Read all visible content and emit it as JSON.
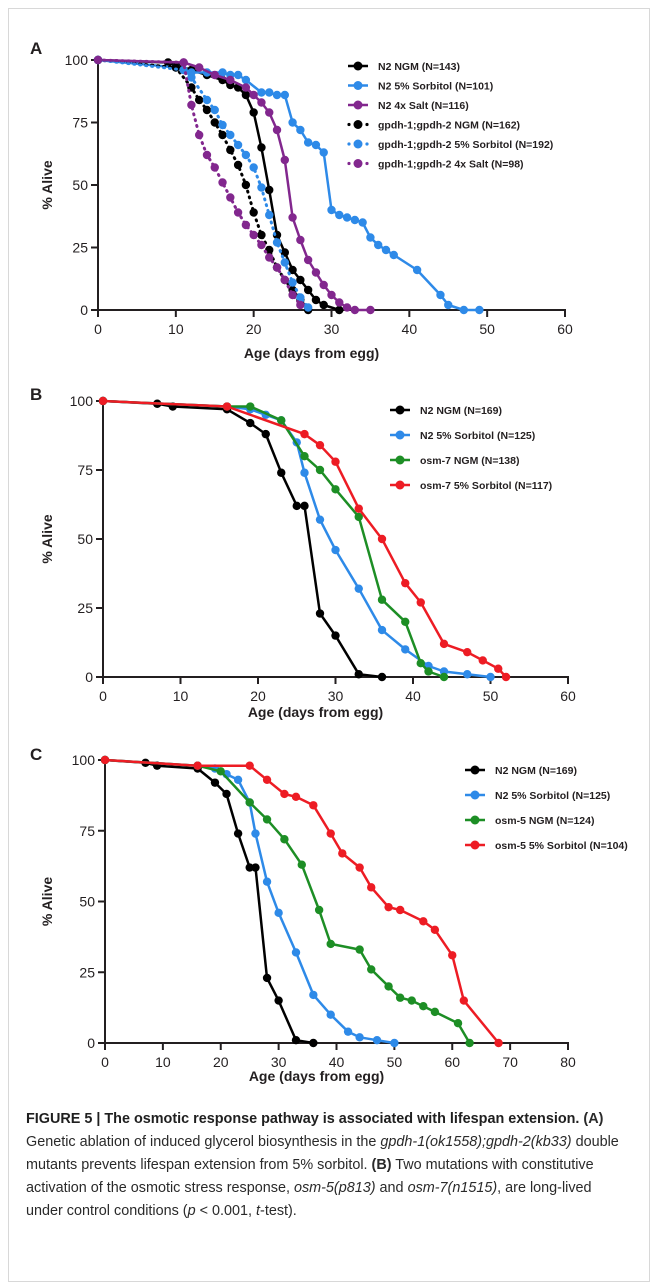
{
  "panels": [
    {
      "letter": "A",
      "chart_data": {
        "type": "line",
        "xlabel": "Age (days from egg)",
        "ylabel": "% Alive",
        "xlim": [
          0,
          60
        ],
        "ylim": [
          0,
          100
        ],
        "xticks": [
          0,
          10,
          20,
          30,
          40,
          50,
          60
        ],
        "yticks": [
          0,
          25,
          50,
          75,
          100
        ],
        "legend_position": "top-right",
        "series": [
          {
            "name": "N2 NGM (N=143)",
            "color": "#000000",
            "style": "solid",
            "x": [
              0,
              9,
              10,
              12,
              14,
              16,
              17,
              18,
              19,
              20,
              21,
              22,
              23,
              24,
              25,
              26,
              27,
              28,
              29,
              31
            ],
            "y": [
              100,
              99,
              98,
              96,
              94,
              92,
              90,
              89,
              86,
              79,
              65,
              48,
              30,
              23,
              16,
              12,
              8,
              4,
              2,
              0
            ]
          },
          {
            "name": "N2 5% Sorbitol (N=101)",
            "color": "#2e8ae8",
            "style": "solid",
            "x": [
              0,
              10,
              12,
              14,
              16,
              17,
              18,
              19,
              21,
              22,
              23,
              24,
              25,
              26,
              27,
              28,
              29,
              30,
              31,
              32,
              33,
              34,
              35,
              36,
              37,
              38,
              41,
              44,
              45,
              47,
              49
            ],
            "y": [
              100,
              97,
              95,
              95,
              95,
              94,
              94,
              92,
              87,
              87,
              86,
              86,
              75,
              72,
              67,
              66,
              63,
              40,
              38,
              37,
              36,
              35,
              29,
              26,
              24,
              22,
              16,
              6,
              2,
              0,
              0
            ]
          },
          {
            "name": "N2 4x Salt (N=116)",
            "color": "#82278e",
            "style": "solid",
            "x": [
              0,
              11,
              13,
              15,
              17,
              19,
              20,
              21,
              22,
              23,
              24,
              25,
              26,
              27,
              28,
              29,
              30,
              31,
              32,
              33,
              35
            ],
            "y": [
              100,
              99,
              97,
              94,
              92,
              89,
              86,
              83,
              79,
              72,
              60,
              37,
              28,
              20,
              15,
              10,
              6,
              3,
              1,
              0,
              0
            ]
          },
          {
            "name": "gpdh-1;gpdh-2 NGM (N=162)",
            "color": "#000000",
            "style": "dotted",
            "x": [
              0,
              10,
              12,
              13,
              14,
              15,
              16,
              17,
              18,
              19,
              20,
              21,
              22,
              23,
              24,
              25,
              26,
              27
            ],
            "y": [
              100,
              97,
              89,
              84,
              80,
              75,
              70,
              64,
              58,
              50,
              39,
              30,
              24,
              17,
              12,
              8,
              4,
              0
            ]
          },
          {
            "name": "gpdh-1;gpdh-2 5% Sorbitol (N=192)",
            "color": "#2e8ae8",
            "style": "dotted",
            "x": [
              0,
              11,
              12,
              14,
              15,
              16,
              17,
              18,
              19,
              20,
              21,
              22,
              23,
              24,
              25,
              26,
              27
            ],
            "y": [
              100,
              96,
              93,
              84,
              80,
              74,
              70,
              66,
              62,
              57,
              49,
              38,
              27,
              19,
              11,
              5,
              1
            ]
          },
          {
            "name": "gpdh-1;gpdh-2 4x Salt (N=98)",
            "color": "#82278e",
            "style": "dotted",
            "x": [
              0,
              11,
              12,
              13,
              14,
              15,
              16,
              17,
              18,
              19,
              20,
              21,
              22,
              23,
              24,
              25,
              26
            ],
            "y": [
              100,
              99,
              82,
              70,
              62,
              57,
              51,
              45,
              39,
              34,
              30,
              26,
              21,
              17,
              12,
              6,
              2
            ]
          }
        ]
      }
    },
    {
      "letter": "B",
      "chart_data": {
        "type": "line",
        "xlabel": "Age (days from egg)",
        "ylabel": "% Alive",
        "xlim": [
          0,
          60
        ],
        "ylim": [
          0,
          100
        ],
        "xticks": [
          0,
          10,
          20,
          30,
          40,
          50,
          60
        ],
        "yticks": [
          0,
          25,
          50,
          75,
          100
        ],
        "legend_position": "top-right",
        "series": [
          {
            "name": "N2 NGM (N=169)",
            "color": "#000000",
            "style": "solid",
            "x": [
              0,
              7,
              9,
              16,
              19,
              21,
              23,
              25,
              26,
              28,
              30,
              33,
              36
            ],
            "y": [
              100,
              99,
              98,
              97,
              92,
              88,
              74,
              62,
              62,
              23,
              15,
              1,
              0
            ]
          },
          {
            "name": "N2 5% Sorbitol (N=125)",
            "color": "#2e8ae8",
            "style": "solid",
            "x": [
              0,
              16,
              19,
              21,
              23,
              25,
              26,
              28,
              30,
              33,
              36,
              39,
              42,
              44,
              47,
              50
            ],
            "y": [
              100,
              98,
              97,
              95,
              93,
              85,
              74,
              57,
              46,
              32,
              17,
              10,
              4,
              2,
              1,
              0
            ]
          },
          {
            "name": "osm-7 NGM (N=138)",
            "color": "#1d8e25",
            "style": "solid",
            "x": [
              0,
              16,
              19,
              23,
              26,
              28,
              30,
              33,
              36,
              39,
              41,
              42,
              44
            ],
            "y": [
              100,
              98,
              98,
              93,
              80,
              75,
              68,
              58,
              28,
              20,
              5,
              2,
              0
            ]
          },
          {
            "name": "osm-7 5% Sorbitol (N=117)",
            "color": "#ed1c24",
            "style": "solid",
            "x": [
              0,
              16,
              26,
              28,
              30,
              33,
              36,
              39,
              41,
              44,
              47,
              49,
              51,
              52
            ],
            "y": [
              100,
              98,
              88,
              84,
              78,
              61,
              50,
              34,
              27,
              12,
              9,
              6,
              3,
              0
            ]
          }
        ]
      }
    },
    {
      "letter": "C",
      "chart_data": {
        "type": "line",
        "xlabel": "Age (days from egg)",
        "ylabel": "% Alive",
        "xlim": [
          0,
          80
        ],
        "ylim": [
          0,
          100
        ],
        "xticks": [
          0,
          10,
          20,
          30,
          40,
          50,
          60,
          70,
          80
        ],
        "yticks": [
          0,
          25,
          50,
          75,
          100
        ],
        "legend_position": "top-right",
        "series": [
          {
            "name": "N2 NGM (N=169)",
            "color": "#000000",
            "style": "solid",
            "x": [
              0,
              7,
              9,
              16,
              19,
              21,
              23,
              25,
              26,
              28,
              30,
              33,
              36
            ],
            "y": [
              100,
              99,
              98,
              97,
              92,
              88,
              74,
              62,
              62,
              23,
              15,
              1,
              0
            ]
          },
          {
            "name": "N2 5% Sorbitol (N=125)",
            "color": "#2e8ae8",
            "style": "solid",
            "x": [
              0,
              16,
              19,
              21,
              23,
              25,
              26,
              28,
              30,
              33,
              36,
              39,
              42,
              44,
              47,
              50
            ],
            "y": [
              100,
              98,
              97,
              95,
              93,
              85,
              74,
              57,
              46,
              32,
              17,
              10,
              4,
              2,
              1,
              0
            ]
          },
          {
            "name": "osm-5 NGM (N=124)",
            "color": "#1d8e25",
            "style": "solid",
            "x": [
              0,
              16,
              20,
              25,
              28,
              31,
              34,
              37,
              39,
              44,
              46,
              49,
              51,
              53,
              55,
              57,
              61,
              63
            ],
            "y": [
              100,
              98,
              96,
              85,
              79,
              72,
              63,
              47,
              35,
              33,
              26,
              20,
              16,
              15,
              13,
              11,
              7,
              0
            ]
          },
          {
            "name": "osm-5 5% Sorbitol (N=104)",
            "color": "#ed1c24",
            "style": "solid",
            "x": [
              0,
              16,
              25,
              28,
              31,
              33,
              36,
              39,
              41,
              44,
              46,
              49,
              51,
              55,
              57,
              60,
              62,
              68
            ],
            "y": [
              100,
              98,
              98,
              93,
              88,
              87,
              84,
              74,
              67,
              62,
              55,
              48,
              47,
              43,
              40,
              31,
              15,
              0
            ]
          }
        ]
      }
    }
  ],
  "caption": {
    "title": "FIGURE 5 | The osmotic response pathway is associated with lifespan extension.",
    "p1": " ",
    "tagA": "(A)",
    "p2": " Genetic ablation of induced glycerol biosynthesis in the ",
    "gene1": "gpdh-1(ok1558);gpdh-2(kb33)",
    "p3": " double mutants prevents lifespan extension from 5% sorbitol. ",
    "tagB": "(B)",
    "p4": " Two mutations with constitutive activation of the osmotic stress response, ",
    "gene2": "osm-5(p813)",
    "p5": " and ",
    "gene3": "osm-7(n1515)",
    "p6": ", are long-lived under control conditions (",
    "pvar": "p",
    "p7": " < 0.001, ",
    "tvar": "t",
    "p8": "-test)."
  }
}
